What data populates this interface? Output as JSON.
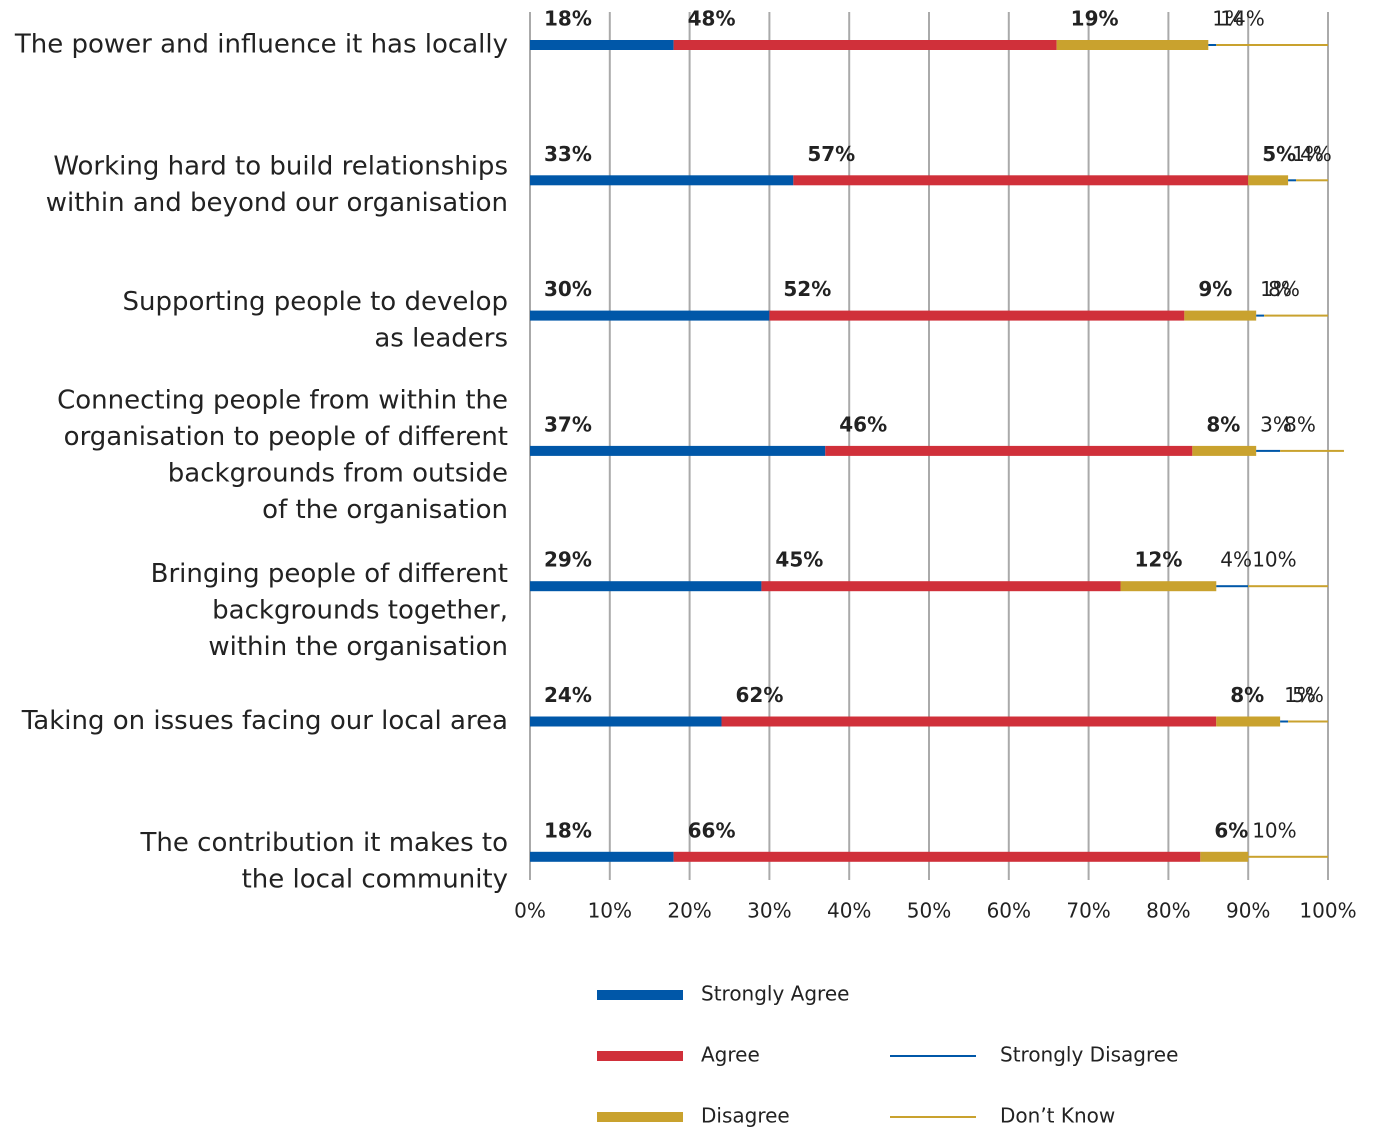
{
  "chart_data": {
    "type": "stacked_barh",
    "categories": [
      [
        "The power and influence it has locally"
      ],
      [
        "Working hard to build relationships",
        "within and beyond our organisation"
      ],
      [
        "Supporting people to develop",
        "as leaders"
      ],
      [
        "Connecting people from within the",
        "organisation to people of different",
        "backgrounds from outside",
        "of the organisation"
      ],
      [
        "Bringing people of different",
        "backgrounds together,",
        "within the organisation"
      ],
      [
        "Taking on issues facing our local area"
      ],
      [
        "The contribution it makes to",
        "the local community"
      ]
    ],
    "series": [
      {
        "name": "Strongly Agree",
        "color": "#0057a8",
        "values": [
          18,
          33,
          30,
          37,
          29,
          24,
          18
        ],
        "value_labels": [
          "18%",
          "33%",
          "30%",
          "37%",
          "29%",
          "24%",
          "18%"
        ]
      },
      {
        "name": "Agree",
        "color": "#d0303a",
        "values": [
          48,
          57,
          52,
          46,
          45,
          62,
          66
        ],
        "value_labels": [
          "48%",
          "57%",
          "52%",
          "46%",
          "45%",
          "62%",
          "66%"
        ]
      },
      {
        "name": "Disagree",
        "color": "#c9a22e",
        "values": [
          19,
          5,
          9,
          8,
          12,
          8,
          6
        ],
        "value_labels": [
          "19%",
          "5%",
          "9%",
          "8%",
          "12%",
          "8%",
          "6%"
        ]
      },
      {
        "name": "Strongly Disagree",
        "color": "#0057a8",
        "values": [
          1,
          1,
          1,
          3,
          4,
          1,
          null
        ],
        "value_labels": [
          "1%",
          "1%",
          "1%",
          "3%",
          "4%",
          "1%",
          null
        ]
      },
      {
        "name": "Don’t Know",
        "color": "#c9a22e",
        "values": [
          14,
          4,
          8,
          8,
          10,
          5,
          10
        ],
        "value_labels": [
          "14%",
          "4%",
          "8%",
          "8%",
          "10%",
          "5%",
          "10%"
        ]
      }
    ],
    "xlim": [
      0,
      100
    ],
    "xticks": [
      {
        "value": 0,
        "label": "0%"
      },
      {
        "value": 10,
        "label": "10%"
      },
      {
        "value": 20,
        "label": "20%"
      },
      {
        "value": 30,
        "label": "30%"
      },
      {
        "value": 40,
        "label": "40%"
      },
      {
        "value": 50,
        "label": "50%"
      },
      {
        "value": 60,
        "label": "60%"
      },
      {
        "value": 70,
        "label": "70%"
      },
      {
        "value": 80,
        "label": "80%"
      },
      {
        "value": 90,
        "label": "90%"
      },
      {
        "value": 100,
        "label": "100%"
      }
    ],
    "grid": true
  }
}
